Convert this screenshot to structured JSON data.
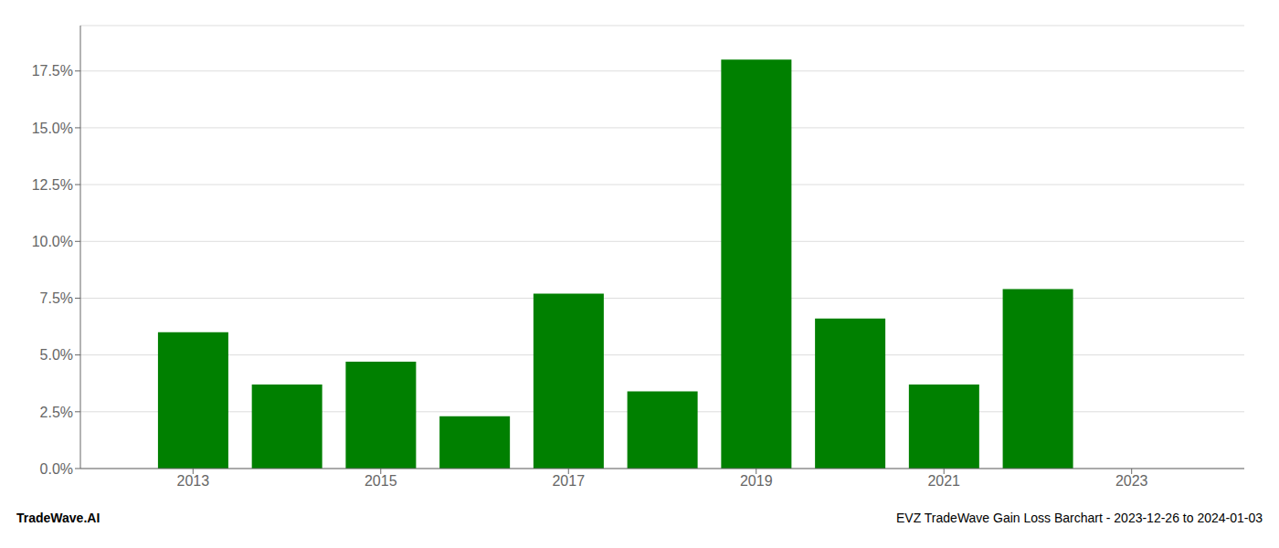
{
  "chart_data": {
    "type": "bar",
    "x": [
      2013,
      2014,
      2015,
      2016,
      2017,
      2018,
      2019,
      2020,
      2021,
      2022,
      2023
    ],
    "values": [
      0.06,
      0.037,
      0.047,
      0.023,
      0.077,
      0.034,
      0.18,
      0.066,
      0.037,
      0.079,
      null
    ],
    "color": "#008000",
    "xlim": [
      2011.8,
      2024.2
    ],
    "xticks": [
      2013,
      2015,
      2017,
      2019,
      2021,
      2023
    ],
    "ylim": [
      0.0,
      0.195
    ],
    "yticks": [
      {
        "value": 0.0,
        "label": "0.0%"
      },
      {
        "value": 0.025,
        "label": "2.5%"
      },
      {
        "value": 0.05,
        "label": "5.0%"
      },
      {
        "value": 0.075,
        "label": "7.5%"
      },
      {
        "value": 0.1,
        "label": "10.0%"
      },
      {
        "value": 0.125,
        "label": "12.5%"
      },
      {
        "value": 0.15,
        "label": "15.0%"
      },
      {
        "value": 0.175,
        "label": "17.5%"
      }
    ],
    "grid": true,
    "annotations": [
      "TradeWave.AI",
      "EVZ TradeWave Gain Loss Barchart - 2023-12-26 to 2024-01-03"
    ]
  }
}
